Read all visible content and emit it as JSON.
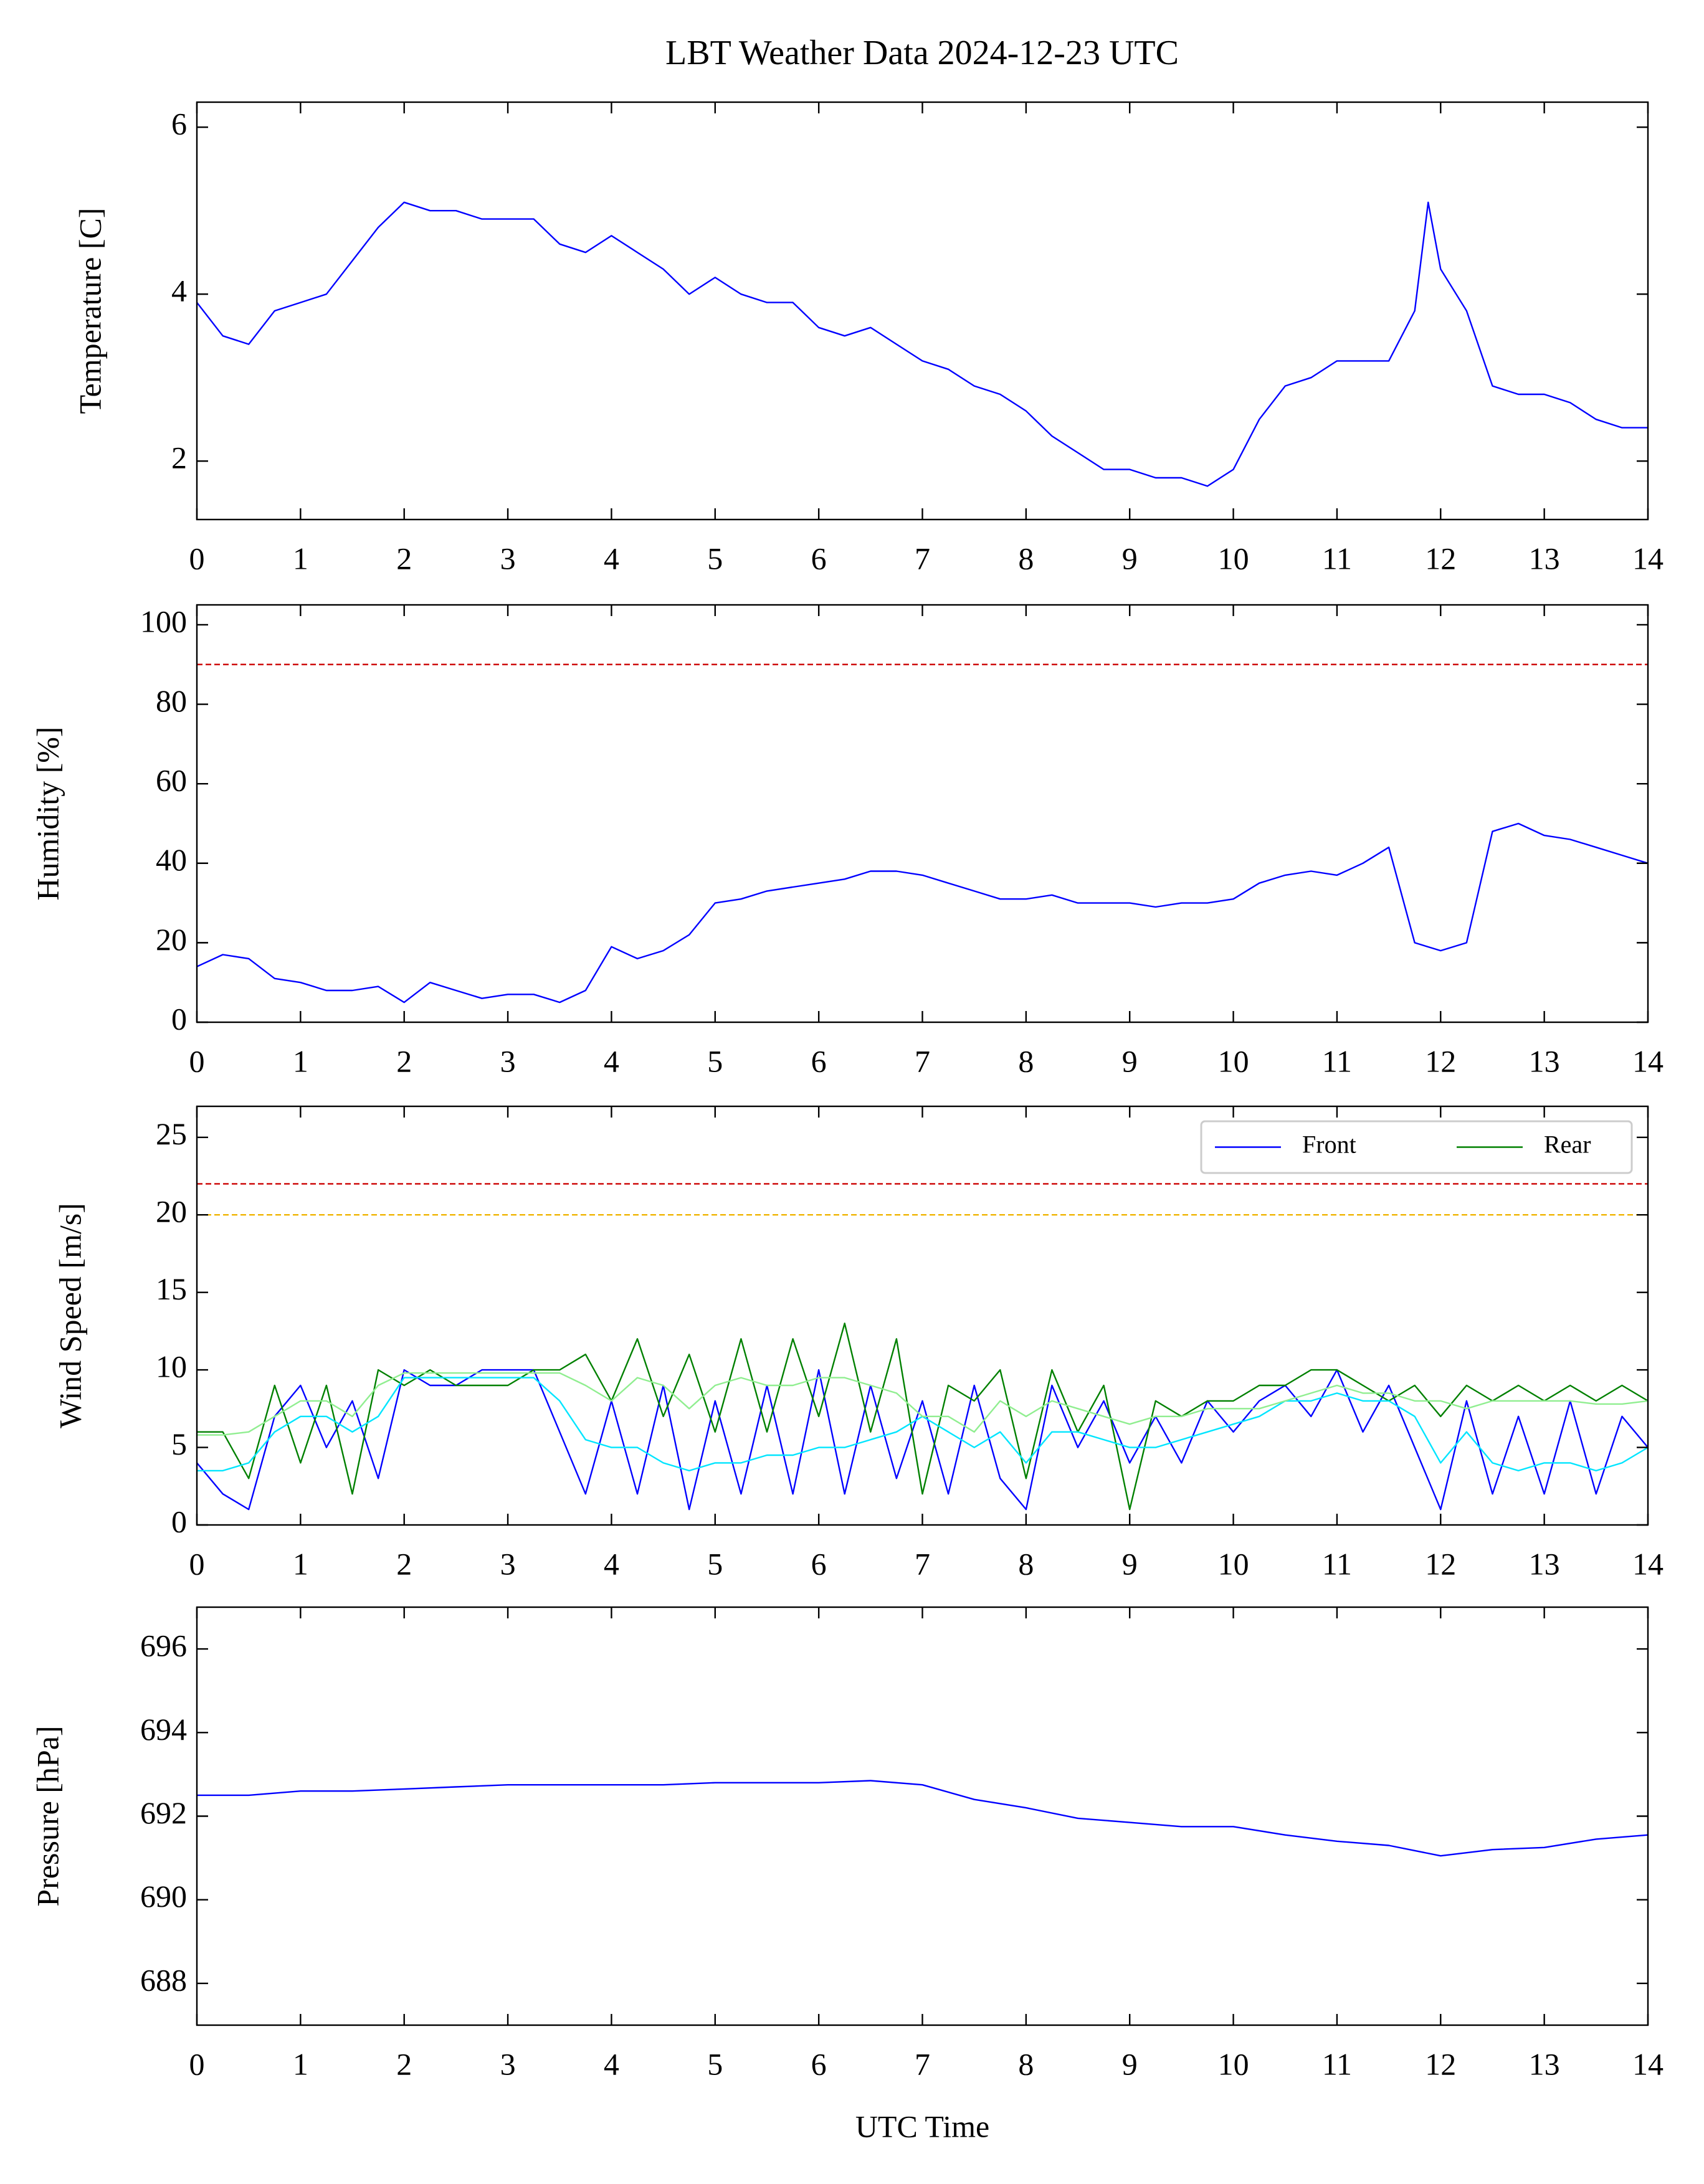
{
  "chart_data": [
    {
      "type": "line",
      "title": "LBT Weather Data 2024-12-23 UTC",
      "ylabel": "Temperature [C]",
      "x": [
        0,
        0.25,
        0.5,
        0.75,
        1,
        1.25,
        1.5,
        1.75,
        2,
        2.25,
        2.5,
        2.75,
        3,
        3.25,
        3.5,
        3.75,
        4,
        4.25,
        4.5,
        4.75,
        5,
        5.25,
        5.5,
        5.75,
        6,
        6.25,
        6.5,
        6.75,
        7,
        7.25,
        7.5,
        7.75,
        8,
        8.25,
        8.5,
        8.75,
        9,
        9.25,
        9.5,
        9.75,
        10,
        10.25,
        10.5,
        10.75,
        11,
        11.25,
        11.5,
        11.75,
        11.88,
        12,
        12.25,
        12.5,
        12.75,
        13,
        13.25,
        13.5,
        13.75,
        14
      ],
      "series": [
        {
          "color": "#0000ff",
          "values": [
            3.9,
            3.5,
            3.4,
            3.8,
            3.9,
            4.0,
            4.4,
            4.8,
            5.1,
            5.0,
            5.0,
            4.9,
            4.9,
            4.9,
            4.6,
            4.5,
            4.7,
            4.5,
            4.3,
            4.0,
            4.2,
            4.0,
            3.9,
            3.9,
            3.6,
            3.5,
            3.6,
            3.4,
            3.2,
            3.1,
            2.9,
            2.8,
            2.6,
            2.3,
            2.1,
            1.9,
            1.9,
            1.8,
            1.8,
            1.7,
            1.9,
            2.5,
            2.9,
            3.0,
            3.2,
            3.2,
            3.2,
            3.8,
            5.1,
            4.3,
            3.8,
            2.9,
            2.8,
            2.8,
            2.7,
            2.5,
            2.4,
            2.4
          ]
        }
      ],
      "xlim": [
        0,
        14
      ],
      "xticks": [
        0,
        1,
        2,
        3,
        4,
        5,
        6,
        7,
        8,
        9,
        10,
        11,
        12,
        13,
        14
      ],
      "ylim": [
        1.3,
        6.3
      ],
      "yticks": [
        2,
        4,
        6
      ]
    },
    {
      "type": "line",
      "ylabel": "Humidity [%]",
      "x": [
        0,
        0.25,
        0.5,
        0.75,
        1,
        1.25,
        1.5,
        1.75,
        2,
        2.25,
        2.5,
        2.75,
        3,
        3.25,
        3.5,
        3.75,
        4,
        4.25,
        4.5,
        4.75,
        5,
        5.25,
        5.5,
        5.75,
        6,
        6.25,
        6.5,
        6.75,
        7,
        7.25,
        7.5,
        7.75,
        8,
        8.25,
        8.5,
        8.75,
        9,
        9.25,
        9.5,
        9.75,
        10,
        10.25,
        10.5,
        10.75,
        11,
        11.25,
        11.5,
        11.75,
        12,
        12.25,
        12.5,
        12.75,
        13,
        13.25,
        13.5,
        13.75,
        14
      ],
      "series": [
        {
          "color": "#0000ff",
          "values": [
            14,
            17,
            16,
            11,
            10,
            8,
            8,
            9,
            5,
            10,
            8,
            6,
            7,
            7,
            5,
            8,
            19,
            16,
            18,
            22,
            30,
            31,
            33,
            34,
            35,
            36,
            38,
            38,
            37,
            35,
            33,
            31,
            31,
            32,
            30,
            30,
            30,
            29,
            30,
            30,
            31,
            35,
            37,
            38,
            37,
            40,
            44,
            20,
            18,
            20,
            48,
            50,
            47,
            46,
            44,
            42,
            40
          ]
        }
      ],
      "hlines": [
        {
          "value": 90,
          "color": "#cc0000"
        }
      ],
      "xlim": [
        0,
        14
      ],
      "xticks": [
        0,
        1,
        2,
        3,
        4,
        5,
        6,
        7,
        8,
        9,
        10,
        11,
        12,
        13,
        14
      ],
      "ylim": [
        0,
        105
      ],
      "yticks": [
        0,
        20,
        40,
        60,
        80,
        100
      ]
    },
    {
      "type": "line",
      "ylabel": "Wind Speed [m/s]",
      "legend": "upper right",
      "x": [
        0,
        0.25,
        0.5,
        0.75,
        1,
        1.25,
        1.5,
        1.75,
        2,
        2.25,
        2.5,
        2.75,
        3,
        3.25,
        3.5,
        3.75,
        4,
        4.25,
        4.5,
        4.75,
        5,
        5.25,
        5.5,
        5.75,
        6,
        6.25,
        6.5,
        6.75,
        7,
        7.25,
        7.5,
        7.75,
        8,
        8.25,
        8.5,
        8.75,
        9,
        9.25,
        9.5,
        9.75,
        10,
        10.25,
        10.5,
        10.75,
        11,
        11.25,
        11.5,
        11.75,
        12,
        12.25,
        12.5,
        12.75,
        13,
        13.25,
        13.5,
        13.75,
        14
      ],
      "series": [
        {
          "name": "Front",
          "color": "#0000ff",
          "values": [
            4,
            2,
            1,
            7,
            9,
            5,
            8,
            3,
            10,
            9,
            9,
            10,
            10,
            10,
            6,
            2,
            8,
            2,
            9,
            1,
            8,
            2,
            9,
            2,
            10,
            2,
            9,
            3,
            8,
            2,
            9,
            3,
            1,
            9,
            5,
            8,
            4,
            7,
            4,
            8,
            6,
            8,
            9,
            7,
            10,
            6,
            9,
            5,
            1,
            8,
            2,
            7,
            2,
            8,
            2,
            7,
            5
          ]
        },
        {
          "name": "Rear",
          "color": "#008000",
          "values": [
            6,
            6,
            3,
            9,
            4,
            9,
            2,
            10,
            9,
            10,
            9,
            9,
            9,
            10,
            10,
            11,
            8,
            12,
            7,
            11,
            6,
            12,
            6,
            12,
            7,
            13,
            6,
            12,
            2,
            9,
            8,
            10,
            3,
            10,
            6,
            9,
            1,
            8,
            7,
            8,
            8,
            9,
            9,
            10,
            10,
            9,
            8,
            9,
            7,
            9,
            8,
            9,
            8,
            9,
            8,
            9,
            8
          ]
        },
        {
          "color": "#00e5ff",
          "values": [
            3.5,
            3.5,
            4,
            6,
            7,
            7,
            6,
            7,
            9.5,
            9.5,
            9.5,
            9.5,
            9.5,
            9.5,
            8,
            5.5,
            5,
            5,
            4,
            3.5,
            4,
            4,
            4.5,
            4.5,
            5,
            5,
            5.5,
            6,
            7,
            6,
            5,
            6,
            4,
            6,
            6,
            5.5,
            5,
            5,
            5.5,
            6,
            6.5,
            7,
            8,
            8,
            8.5,
            8,
            8,
            7,
            4,
            6,
            4,
            3.5,
            4,
            4,
            3.5,
            4,
            5
          ]
        },
        {
          "color": "#90ee90",
          "values": [
            5.8,
            5.8,
            6,
            7,
            8,
            8,
            7,
            9,
            9.8,
            9.8,
            9.8,
            9.8,
            9.8,
            9.8,
            9.8,
            9,
            8,
            9.5,
            9,
            7.5,
            9,
            9.5,
            9,
            9,
            9.5,
            9.5,
            9,
            8.5,
            7,
            7,
            6,
            8,
            7,
            8,
            7.5,
            7,
            6.5,
            7,
            7,
            7.5,
            7.5,
            7.5,
            8,
            8.5,
            9,
            8.5,
            8.5,
            8,
            8,
            7.5,
            8,
            8,
            8,
            8,
            7.8,
            7.8,
            8
          ]
        }
      ],
      "hlines": [
        {
          "value": 22,
          "color": "#cc0000"
        },
        {
          "value": 20,
          "color": "#f0b400"
        }
      ],
      "xlim": [
        0,
        14
      ],
      "xticks": [
        0,
        1,
        2,
        3,
        4,
        5,
        6,
        7,
        8,
        9,
        10,
        11,
        12,
        13,
        14
      ],
      "ylim": [
        0,
        27
      ],
      "yticks": [
        0,
        5,
        10,
        15,
        20,
        25
      ]
    },
    {
      "type": "line",
      "ylabel": "Pressure [hPa]",
      "xlabel": "UTC Time",
      "x": [
        0,
        0.5,
        1,
        1.5,
        2,
        2.5,
        3,
        3.5,
        4,
        4.5,
        5,
        5.5,
        6,
        6.5,
        7,
        7.5,
        8,
        8.5,
        9,
        9.5,
        10,
        10.5,
        11,
        11.5,
        12,
        12.5,
        13,
        13.5,
        14
      ],
      "series": [
        {
          "color": "#0000ff",
          "values": [
            692.5,
            692.5,
            692.6,
            692.6,
            692.65,
            692.7,
            692.75,
            692.75,
            692.75,
            692.75,
            692.8,
            692.8,
            692.8,
            692.85,
            692.75,
            692.4,
            692.2,
            691.95,
            691.85,
            691.75,
            691.75,
            691.55,
            691.4,
            691.3,
            691.05,
            691.2,
            691.25,
            691.45,
            691.55
          ]
        }
      ],
      "xlim": [
        0,
        14
      ],
      "xticks": [
        0,
        1,
        2,
        3,
        4,
        5,
        6,
        7,
        8,
        9,
        10,
        11,
        12,
        13,
        14
      ],
      "ylim": [
        687,
        697
      ],
      "yticks": [
        688,
        690,
        692,
        694,
        696
      ]
    }
  ]
}
